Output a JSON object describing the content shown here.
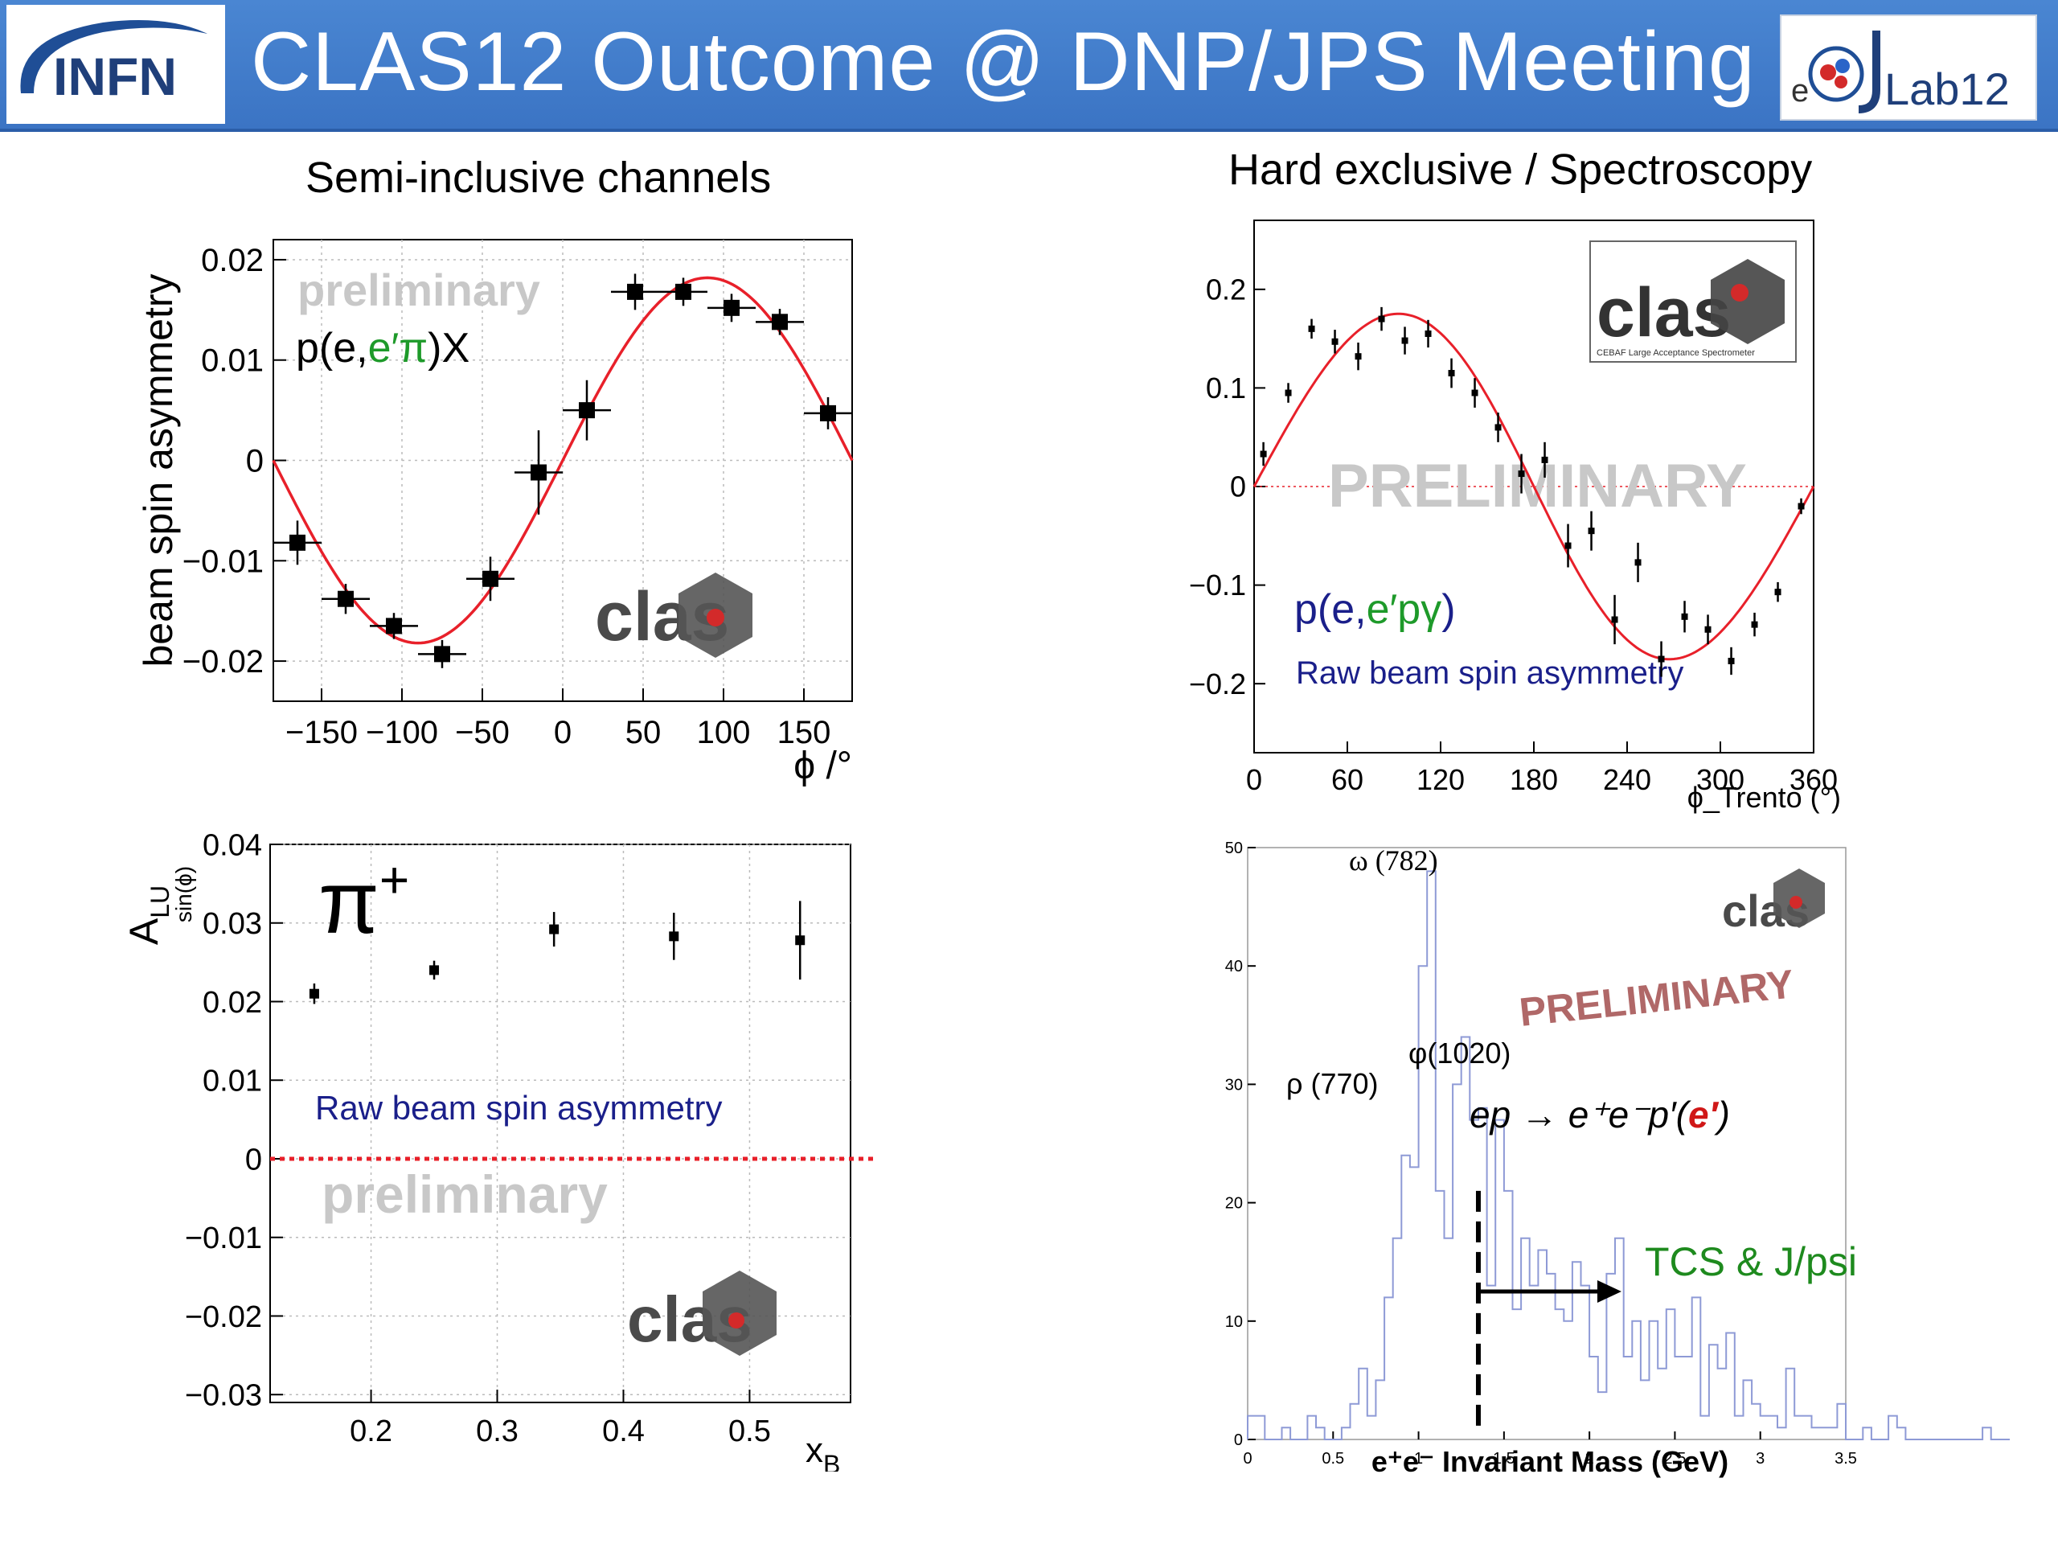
{
  "header": {
    "title": "CLAS12 Outcome @ DNP/JPS Meeting",
    "left_logo_text": "INFN",
    "right_logo_text": "Lab12",
    "right_logo_prefix": "e",
    "brand_color": "#3b74c4"
  },
  "sections": {
    "left_title": "Semi-inclusive channels",
    "right_title": "Hard exclusive / Spectroscopy"
  },
  "chart_data": [
    {
      "id": "sidis-bsa",
      "type": "scatter",
      "ylabel": "beam spin asymmetry",
      "xlabel": "ϕ /°",
      "xlim": [
        -180,
        180
      ],
      "ylim": [
        -0.024,
        0.022
      ],
      "xticks": [
        "−150",
        "−100",
        "−50",
        "0",
        "50",
        "100",
        "150"
      ],
      "yticks": [
        "−0.02",
        "−0.01",
        "0",
        "0.01",
        "0.02"
      ],
      "grid": true,
      "watermark": "preliminary",
      "reaction_prefix": "p(e,",
      "reaction_colored": "e′π",
      "reaction_suffix": ")X",
      "logo": "clas",
      "points": [
        {
          "x": -165,
          "y": -0.0082,
          "ey": 0.0022,
          "ex": 15
        },
        {
          "x": -135,
          "y": -0.0138,
          "ey": 0.0015,
          "ex": 15
        },
        {
          "x": -105,
          "y": -0.0165,
          "ey": 0.0013,
          "ex": 15
        },
        {
          "x": -75,
          "y": -0.0193,
          "ey": 0.0014,
          "ex": 15
        },
        {
          "x": -45,
          "y": -0.0118,
          "ey": 0.0022,
          "ex": 15
        },
        {
          "x": -15,
          "y": -0.0012,
          "ey": 0.0042,
          "ex": 15
        },
        {
          "x": 15,
          "y": 0.005,
          "ey": 0.003,
          "ex": 15
        },
        {
          "x": 45,
          "y": 0.0168,
          "ey": 0.0018,
          "ex": 15
        },
        {
          "x": 75,
          "y": 0.0168,
          "ey": 0.0014,
          "ex": 15
        },
        {
          "x": 105,
          "y": 0.0152,
          "ey": 0.0014,
          "ex": 15
        },
        {
          "x": 135,
          "y": 0.0138,
          "ey": 0.0013,
          "ex": 15
        },
        {
          "x": 165,
          "y": 0.0047,
          "ey": 0.0016,
          "ex": 15
        }
      ],
      "fit": {
        "amplitude": 0.0182,
        "phase_deg": 90,
        "color": "#e8202a"
      }
    },
    {
      "id": "dvcs-bsa",
      "type": "scatter",
      "xlabel": "ϕ_Trento (°)",
      "xlim": [
        0,
        360
      ],
      "ylim": [
        -0.27,
        0.27
      ],
      "xticks": [
        "0",
        "60",
        "120",
        "180",
        "240",
        "300",
        "360"
      ],
      "yticks": [
        "0.2",
        "0.1",
        "0",
        "−0.1",
        "−0.2"
      ],
      "watermark": "PRELIMINARY",
      "reaction_prefix": "p(e,",
      "reaction_colored": "e′pγ",
      "reaction_suffix": ")",
      "note": "Raw beam spin asymmetry",
      "logo": "clas",
      "logo_subtitle": "CEBAF Large Acceptance Spectrometer",
      "points": [
        {
          "x": 6,
          "y": 0.033,
          "ey": 0.012
        },
        {
          "x": 22,
          "y": 0.095,
          "ey": 0.01
        },
        {
          "x": 37,
          "y": 0.16,
          "ey": 0.01
        },
        {
          "x": 52,
          "y": 0.147,
          "ey": 0.012
        },
        {
          "x": 67,
          "y": 0.132,
          "ey": 0.014
        },
        {
          "x": 82,
          "y": 0.17,
          "ey": 0.012
        },
        {
          "x": 97,
          "y": 0.148,
          "ey": 0.014
        },
        {
          "x": 112,
          "y": 0.155,
          "ey": 0.014
        },
        {
          "x": 127,
          "y": 0.115,
          "ey": 0.015
        },
        {
          "x": 142,
          "y": 0.095,
          "ey": 0.015
        },
        {
          "x": 157,
          "y": 0.06,
          "ey": 0.015
        },
        {
          "x": 172,
          "y": 0.013,
          "ey": 0.02
        },
        {
          "x": 187,
          "y": 0.027,
          "ey": 0.018
        },
        {
          "x": 202,
          "y": -0.06,
          "ey": 0.022
        },
        {
          "x": 217,
          "y": -0.045,
          "ey": 0.02
        },
        {
          "x": 232,
          "y": -0.135,
          "ey": 0.025
        },
        {
          "x": 247,
          "y": -0.077,
          "ey": 0.02
        },
        {
          "x": 262,
          "y": -0.175,
          "ey": 0.018
        },
        {
          "x": 277,
          "y": -0.132,
          "ey": 0.016
        },
        {
          "x": 292,
          "y": -0.145,
          "ey": 0.015
        },
        {
          "x": 307,
          "y": -0.177,
          "ey": 0.014
        },
        {
          "x": 322,
          "y": -0.14,
          "ey": 0.012
        },
        {
          "x": 337,
          "y": -0.107,
          "ey": 0.01
        },
        {
          "x": 352,
          "y": -0.02,
          "ey": 0.008
        }
      ],
      "fit": {
        "amplitude": 0.175,
        "color": "#e8202a"
      }
    },
    {
      "id": "alu-xb",
      "type": "scatter",
      "ylabel_main": "A",
      "ylabel_sub": "LU",
      "ylabel_sup": "sin(ϕ)",
      "xlabel_main": "x",
      "xlabel_sub": "B",
      "xlim": [
        0.12,
        0.58
      ],
      "ylim": [
        -0.031,
        0.04
      ],
      "xticks": [
        "0.2",
        "0.3",
        "0.4",
        "0.5"
      ],
      "yticks": [
        "0.04",
        "0.03",
        "0.02",
        "0.01",
        "0",
        "−0.01",
        "−0.02",
        "−0.03"
      ],
      "grid": true,
      "particle_label": "π",
      "particle_charge": "+",
      "note": "Raw beam spin asymmetry",
      "watermark": "preliminary",
      "logo": "clas",
      "points": [
        {
          "x": 0.155,
          "y": 0.021,
          "ey": 0.0013
        },
        {
          "x": 0.25,
          "y": 0.024,
          "ey": 0.0012
        },
        {
          "x": 0.345,
          "y": 0.0292,
          "ey": 0.0022
        },
        {
          "x": 0.44,
          "y": 0.0283,
          "ey": 0.003
        },
        {
          "x": 0.54,
          "y": 0.0278,
          "ey": 0.005
        }
      ]
    },
    {
      "id": "ee-mass",
      "type": "bar",
      "xlabel": "e⁺e⁻ Invariant Mass (GeV)",
      "xlim": [
        0,
        3.5
      ],
      "ylim": [
        0,
        50
      ],
      "xticks": [
        "0",
        "0.5",
        "1",
        "1.5",
        "2",
        "2.5",
        "3",
        "3.5"
      ],
      "yticks": [
        "0",
        "10",
        "20",
        "30",
        "40",
        "50"
      ],
      "watermark": "PRELIMINARY",
      "annotations": {
        "omega": "ω (782)",
        "rho": "ρ (770)",
        "phi": "φ(1020)"
      },
      "reaction_prefix": "ep  → e⁺e⁻p′(",
      "reaction_colored": "e′",
      "reaction_suffix": ")",
      "arrow_label": "TCS & J/psi",
      "cut_x": 1.35,
      "logo": "clas",
      "bin_width": 0.05,
      "counts": [
        2,
        2,
        0,
        0,
        1,
        0,
        0,
        2,
        1,
        0,
        0,
        1,
        3,
        6,
        2,
        5,
        12,
        17,
        24,
        23,
        40,
        48,
        21,
        17,
        30,
        34,
        27,
        28,
        13,
        27,
        21,
        11,
        17,
        13,
        16,
        14,
        11,
        10,
        15,
        13,
        7,
        4,
        14,
        17,
        7,
        10,
        5,
        10,
        6,
        11,
        7,
        7,
        12,
        2,
        8,
        6,
        9,
        2,
        5,
        3,
        2,
        2,
        1,
        6,
        2,
        2,
        1,
        1,
        1,
        3,
        0,
        0,
        1,
        0,
        0,
        2,
        1,
        0,
        0,
        0,
        0,
        0,
        0,
        0,
        0,
        0,
        1,
        0,
        0,
        0,
        0,
        0,
        0,
        0,
        0,
        0,
        0,
        1,
        0,
        0,
        0,
        0,
        0,
        0,
        0,
        0,
        0,
        0,
        0,
        0,
        0,
        0,
        1,
        0,
        0,
        0,
        0,
        0,
        0,
        0,
        0,
        0,
        0,
        0,
        0,
        0,
        0,
        0,
        0,
        0
      ]
    }
  ]
}
